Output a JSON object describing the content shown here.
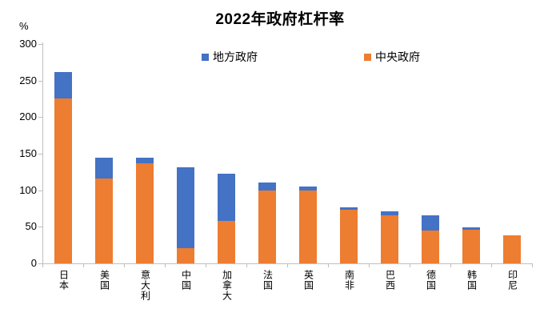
{
  "title": "2022年政府杠杆率",
  "y_unit_label": "%",
  "legend": {
    "items": [
      {
        "label": "地方政府",
        "color": "#4472c4"
      },
      {
        "label": "中央政府",
        "color": "#ed7d31"
      }
    ]
  },
  "chart_data": {
    "type": "bar",
    "stacked": true,
    "title": "2022年政府杠杆率",
    "ylabel": "%",
    "ylim": [
      0,
      300
    ],
    "y_ticks": [
      0,
      50,
      100,
      150,
      200,
      250,
      300
    ],
    "grid": false,
    "legend_position": "top",
    "categories": [
      "日本",
      "美国",
      "意大利",
      "中国",
      "加拿大",
      "法国",
      "英国",
      "南非",
      "巴西",
      "德国",
      "韩国",
      "印尼"
    ],
    "series": [
      {
        "name": "中央政府",
        "color": "#ed7d31",
        "values": [
          226,
          116,
          137,
          21,
          58,
          100,
          100,
          73,
          66,
          45,
          46,
          38
        ]
      },
      {
        "name": "地方政府",
        "color": "#4472c4",
        "values": [
          36,
          28,
          7,
          110,
          65,
          11,
          5,
          4,
          5,
          21,
          3,
          0
        ]
      }
    ],
    "totals": [
      262,
      144,
      144,
      131,
      123,
      111,
      105,
      77,
      71,
      66,
      49,
      38
    ]
  }
}
